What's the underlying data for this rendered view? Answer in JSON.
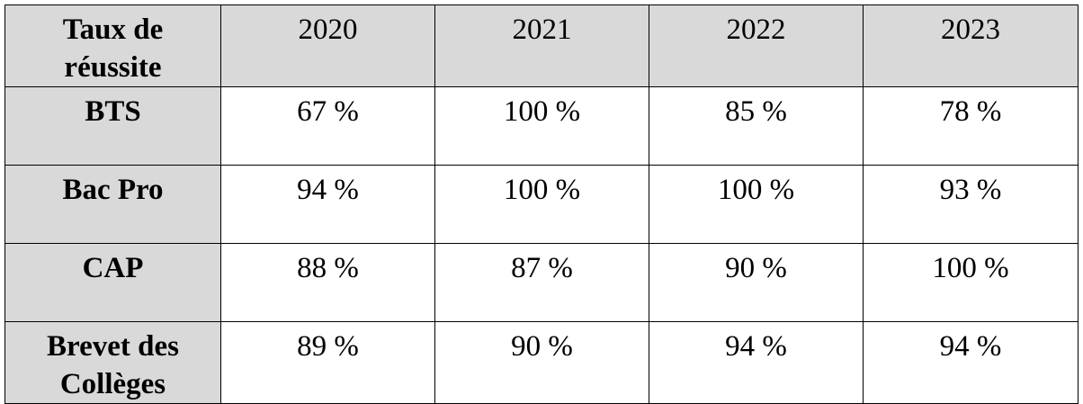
{
  "table": {
    "header": [
      "Taux de réussite",
      "2020",
      "2021",
      "2022",
      "2023"
    ],
    "rows": [
      [
        "BTS",
        "67 %",
        "100 %",
        "85 %",
        "78 %"
      ],
      [
        "Bac Pro",
        "94 %",
        "100 %",
        "100 %",
        "93 %"
      ],
      [
        "CAP",
        "88 %",
        "87 %",
        "90 %",
        "100 %"
      ],
      [
        "Brevet des Collèges",
        "89 %",
        "90 %",
        "94 %",
        "94 %"
      ]
    ]
  }
}
